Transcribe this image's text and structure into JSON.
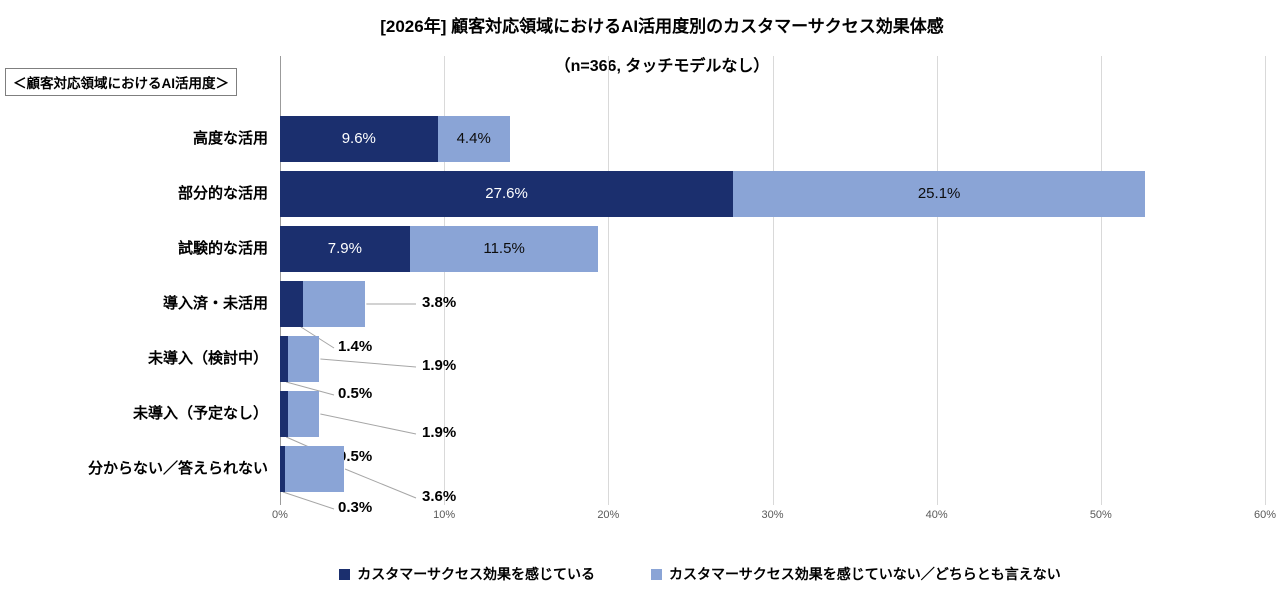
{
  "title": "[2026年] 顧客対応領域におけるAI活用度別のカスタマーサクセス効果体感",
  "subtitle": "（n=366, タッチモデルなし）",
  "axis_group_label": "＜顧客対応領域におけるAI活用度＞",
  "legend": [
    {
      "label": "カスタマーサクセス効果を感じている",
      "color": "#1B2F6E"
    },
    {
      "label": "カスタマーサクセス効果を感じていない／どちらとも言えない",
      "color": "#8AA4D6"
    }
  ],
  "chart_data": {
    "type": "bar",
    "orientation": "horizontal",
    "stacked": true,
    "grid": "vertical",
    "legend_position": "bottom",
    "categories": [
      "高度な活用",
      "部分的な活用",
      "試験的な活用",
      "導入済・未活用",
      "未導入（検討中）",
      "未導入（予定なし）",
      "分からない／答えられない"
    ],
    "series": [
      {
        "name": "カスタマーサクセス効果を感じている",
        "color": "#1B2F6E",
        "values": [
          9.6,
          27.6,
          7.9,
          1.4,
          0.5,
          0.5,
          0.3
        ]
      },
      {
        "name": "カスタマーサクセス効果を感じていない／どちらとも言えない",
        "color": "#8AA4D6",
        "values": [
          4.4,
          25.1,
          11.5,
          3.8,
          1.9,
          1.9,
          3.6
        ]
      }
    ],
    "data_label_format": "percent_one_decimal",
    "x_ticks": [
      "0%",
      "10%",
      "20%",
      "30%",
      "40%",
      "50%",
      "60%"
    ],
    "xlim": [
      0,
      60
    ],
    "xlabel": "",
    "ylabel": ""
  }
}
